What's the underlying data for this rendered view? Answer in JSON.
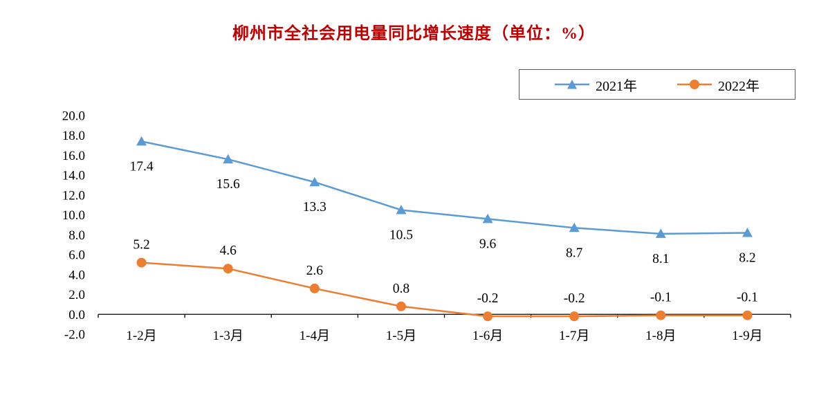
{
  "title": "柳州市全社会用电量同比增长速度（单位：%）",
  "colors": {
    "title": "#c00000",
    "series_2021": "#5b9bd5",
    "series_2022": "#ed7d31",
    "axis": "#000000",
    "legend_border": "#595959"
  },
  "chart_data": {
    "type": "line",
    "title": "柳州市全社会用电量同比增长速度（单位：%）",
    "categories": [
      "1-2月",
      "1-3月",
      "1-4月",
      "1-5月",
      "1-6月",
      "1-7月",
      "1-8月",
      "1-9月"
    ],
    "series": [
      {
        "name": "2021年",
        "marker": "triangle",
        "color": "#5b9bd5",
        "label_position": "below",
        "values": [
          17.4,
          15.6,
          13.3,
          10.5,
          9.6,
          8.7,
          8.1,
          8.2
        ]
      },
      {
        "name": "2022年",
        "marker": "circle",
        "color": "#ed7d31",
        "label_position": "above",
        "values": [
          5.2,
          4.6,
          2.6,
          0.8,
          -0.2,
          -0.2,
          -0.1,
          -0.1
        ]
      }
    ],
    "ylim": [
      -2.0,
      20.0
    ],
    "ytick_step": 2.0,
    "ytick_labels": [
      "20.0",
      "18.0",
      "16.0",
      "14.0",
      "12.0",
      "10.0",
      "8.0",
      "6.0",
      "4.0",
      "2.0",
      "0.0",
      "-2.0"
    ],
    "xlabel": "",
    "ylabel": "",
    "grid": false,
    "legend_position": "top-right"
  }
}
